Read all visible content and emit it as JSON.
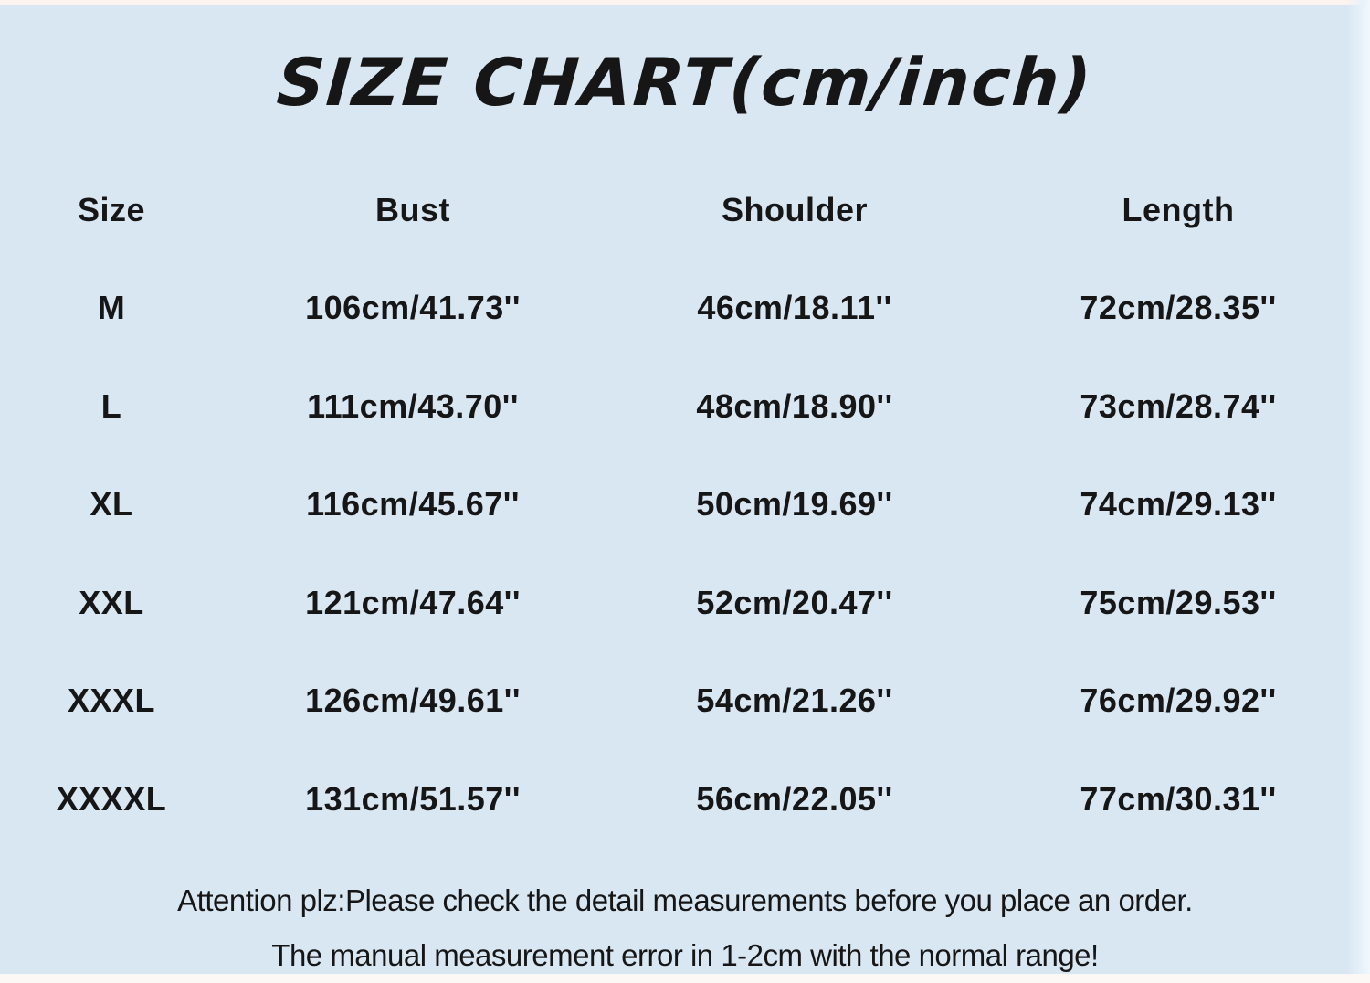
{
  "colors": {
    "background": "#d9e7f3",
    "text": "#161616",
    "top_strip": "#fdf3ee",
    "bottom_strip": "#fcf8f6"
  },
  "title": "SIZE CHART(cm/inch)",
  "table": {
    "columns": [
      "Size",
      "Bust",
      "Shoulder",
      "Length"
    ],
    "rows": [
      {
        "size": "M",
        "bust": "106cm/41.73''",
        "shoulder": "46cm/18.11''",
        "length": "72cm/28.35''"
      },
      {
        "size": "L",
        "bust": "111cm/43.70''",
        "shoulder": "48cm/18.90''",
        "length": "73cm/28.74''"
      },
      {
        "size": "XL",
        "bust": "116cm/45.67''",
        "shoulder": "50cm/19.69''",
        "length": "74cm/29.13''"
      },
      {
        "size": "XXL",
        "bust": "121cm/47.64''",
        "shoulder": "52cm/20.47''",
        "length": "75cm/29.53''"
      },
      {
        "size": "XXXL",
        "bust": "126cm/49.61''",
        "shoulder": "54cm/21.26''",
        "length": "76cm/29.92''"
      },
      {
        "size": "XXXXL",
        "bust": "131cm/51.57''",
        "shoulder": "56cm/22.05''",
        "length": "77cm/30.31''"
      }
    ]
  },
  "attention": {
    "line1": "Attention plz:Please check the detail measurements before you place an order.",
    "line2": "The manual measurement error in 1-2cm with the normal range!"
  },
  "chart_data": {
    "type": "table",
    "title": "SIZE CHART(cm/inch)",
    "columns": [
      "Size",
      "Bust",
      "Shoulder",
      "Length"
    ],
    "rows": [
      [
        "M",
        "106cm/41.73''",
        "46cm/18.11''",
        "72cm/28.35''"
      ],
      [
        "L",
        "111cm/43.70''",
        "48cm/18.90''",
        "73cm/28.74''"
      ],
      [
        "XL",
        "116cm/45.67''",
        "50cm/19.69''",
        "74cm/29.13''"
      ],
      [
        "XXL",
        "121cm/47.64''",
        "52cm/20.47''",
        "75cm/29.53''"
      ],
      [
        "XXXL",
        "126cm/49.61''",
        "54cm/21.26''",
        "76cm/29.92''"
      ],
      [
        "XXXXL",
        "131cm/51.57''",
        "56cm/22.05''",
        "77cm/30.31''"
      ]
    ],
    "units": "cm and inches",
    "notes": [
      "Attention plz:Please check the detail measurements before you place an order.",
      "The manual measurement error in 1-2cm with the normal range!"
    ]
  }
}
